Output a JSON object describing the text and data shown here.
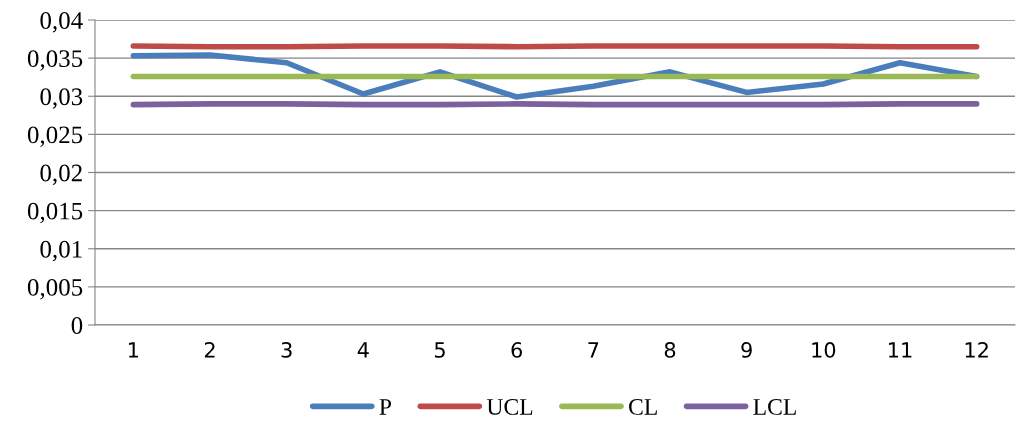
{
  "chart_data": {
    "type": "line",
    "categories": [
      "1",
      "2",
      "3",
      "4",
      "5",
      "6",
      "7",
      "8",
      "9",
      "10",
      "11",
      "12"
    ],
    "series": [
      {
        "name": "P",
        "color": "#4a7ebb",
        "values": [
          0.0353,
          0.0354,
          0.0344,
          0.0303,
          0.0332,
          0.0299,
          0.0313,
          0.0332,
          0.0305,
          0.0316,
          0.0344,
          0.0326
        ]
      },
      {
        "name": "UCL",
        "color": "#be4b48",
        "values": [
          0.0366,
          0.0365,
          0.0365,
          0.0366,
          0.0366,
          0.0365,
          0.0366,
          0.0366,
          0.0366,
          0.0366,
          0.0365,
          0.0365
        ]
      },
      {
        "name": "CL",
        "color": "#98b954",
        "values": [
          0.0326,
          0.0326,
          0.0326,
          0.0326,
          0.0326,
          0.0326,
          0.0326,
          0.0326,
          0.0326,
          0.0326,
          0.0326,
          0.0326
        ]
      },
      {
        "name": "LCL",
        "color": "#7d60a0",
        "values": [
          0.0289,
          0.029,
          0.029,
          0.0289,
          0.0289,
          0.029,
          0.0289,
          0.0289,
          0.0289,
          0.0289,
          0.029,
          0.029
        ]
      }
    ],
    "ylim": [
      0,
      0.04
    ],
    "yticks": [
      {
        "value": 0,
        "label": "0"
      },
      {
        "value": 0.005,
        "label": "0,005"
      },
      {
        "value": 0.01,
        "label": "0,01"
      },
      {
        "value": 0.015,
        "label": "0,015"
      },
      {
        "value": 0.02,
        "label": "0,02"
      },
      {
        "value": 0.025,
        "label": "0,025"
      },
      {
        "value": 0.03,
        "label": "0,03"
      },
      {
        "value": 0.035,
        "label": "0,035"
      },
      {
        "value": 0.04,
        "label": "0,04"
      }
    ],
    "grid": "y",
    "legend": "bottom",
    "marker": "none",
    "line_style": "solid"
  }
}
